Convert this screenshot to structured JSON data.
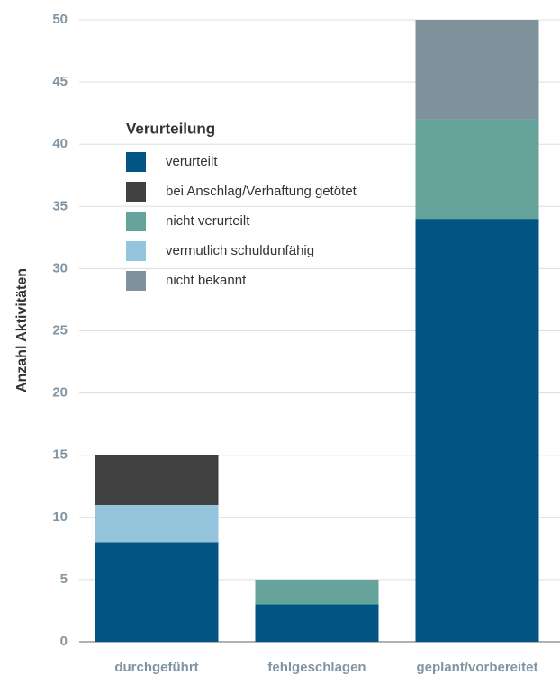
{
  "chart_data": {
    "type": "stacked_bar",
    "ylabel": "Anzahl Aktivitäten",
    "legend_title": "Verurteilung",
    "categories": [
      "durchgeführt",
      "fehlgeschlagen",
      "geplant/vorbereitet"
    ],
    "series": [
      {
        "name": "verurteilt",
        "color": "#005582",
        "values": [
          8,
          3,
          34
        ]
      },
      {
        "name": "bei Anschlag/Verhaftung getötet",
        "color": "#404040",
        "values": [
          4,
          0,
          0
        ]
      },
      {
        "name": "nicht verurteilt",
        "color": "#66a39a",
        "values": [
          0,
          2,
          8
        ]
      },
      {
        "name": "vermutlich schuldunfähig",
        "color": "#94c5dc",
        "values": [
          3,
          0,
          0
        ]
      },
      {
        "name": "nicht bekannt",
        "color": "#7f929c",
        "values": [
          0,
          0,
          8
        ]
      }
    ],
    "ylim": [
      0,
      50
    ],
    "yticks": [
      0,
      5,
      10,
      15,
      20,
      25,
      30,
      35,
      40,
      45,
      50
    ],
    "grid": true,
    "legend": "upper left"
  }
}
